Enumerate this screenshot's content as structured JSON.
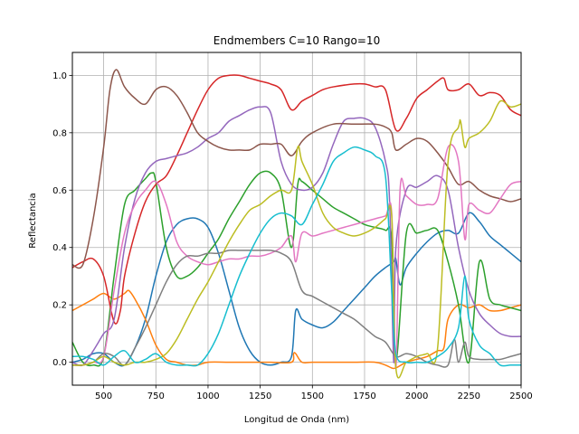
{
  "chart_data": {
    "type": "line",
    "title": "Endmembers C=10 Rango=10",
    "xlabel": "Longitud de Onda (nm)",
    "ylabel": "Reflectancia",
    "xlim": [
      350,
      2500
    ],
    "ylim": [
      -0.08,
      1.08
    ],
    "xticks": [
      500,
      750,
      1000,
      1250,
      1500,
      1750,
      2000,
      2250,
      2500
    ],
    "xtick_labels": [
      "500",
      "750",
      "1000",
      "1250",
      "1500",
      "1750",
      "2000",
      "2250",
      "2500"
    ],
    "yticks": [
      0.0,
      0.2,
      0.4,
      0.6,
      0.8,
      1.0
    ],
    "ytick_labels": [
      "0.0",
      "0.2",
      "0.4",
      "0.6",
      "0.8",
      "1.0"
    ],
    "grid": true,
    "series": [
      {
        "color": "#1f77b4",
        "x": [
          350,
          400,
          450,
          500,
          550,
          600,
          650,
          700,
          750,
          800,
          850,
          900,
          950,
          1000,
          1050,
          1100,
          1150,
          1200,
          1250,
          1300,
          1350,
          1400,
          1420,
          1450,
          1500,
          1550,
          1600,
          1650,
          1700,
          1750,
          1800,
          1850,
          1890,
          1900,
          1920,
          1950,
          2000,
          2050,
          2100,
          2150,
          2200,
          2250,
          2300,
          2350,
          2400,
          2450,
          2500
        ],
        "y": [
          0.0,
          0.01,
          0.03,
          0.03,
          0.0,
          -0.01,
          0.05,
          0.15,
          0.3,
          0.42,
          0.48,
          0.5,
          0.5,
          0.47,
          0.38,
          0.25,
          0.12,
          0.04,
          0.0,
          -0.01,
          0.0,
          0.02,
          0.18,
          0.15,
          0.13,
          0.12,
          0.14,
          0.18,
          0.22,
          0.26,
          0.3,
          0.33,
          0.35,
          0.36,
          0.27,
          0.33,
          0.38,
          0.42,
          0.45,
          0.46,
          0.45,
          0.52,
          0.49,
          0.44,
          0.41,
          0.38,
          0.35
        ]
      },
      {
        "color": "#ff7f0e",
        "x": [
          350,
          400,
          450,
          500,
          550,
          600,
          620,
          650,
          700,
          750,
          800,
          850,
          900,
          950,
          1000,
          1100,
          1200,
          1300,
          1400,
          1410,
          1420,
          1450,
          1500,
          1600,
          1700,
          1800,
          1850,
          1880,
          1900,
          1950,
          2000,
          2050,
          2100,
          2130,
          2150,
          2200,
          2250,
          2300,
          2350,
          2400,
          2450,
          2500
        ],
        "y": [
          0.18,
          0.2,
          0.22,
          0.24,
          0.22,
          0.24,
          0.25,
          0.22,
          0.15,
          0.06,
          0.01,
          0.0,
          -0.01,
          -0.01,
          0.0,
          0.0,
          0.0,
          0.0,
          0.0,
          0.03,
          0.03,
          0.0,
          0.0,
          0.0,
          0.0,
          0.0,
          -0.01,
          -0.02,
          -0.02,
          0.0,
          0.01,
          0.02,
          0.04,
          0.05,
          0.15,
          0.2,
          0.19,
          0.2,
          0.18,
          0.18,
          0.19,
          0.2
        ]
      },
      {
        "color": "#2ca02c",
        "x": [
          350,
          400,
          450,
          500,
          550,
          600,
          650,
          700,
          730,
          750,
          800,
          850,
          900,
          950,
          1000,
          1050,
          1100,
          1150,
          1200,
          1250,
          1300,
          1350,
          1400,
          1430,
          1450,
          1500,
          1550,
          1600,
          1650,
          1700,
          1750,
          1800,
          1850,
          1880,
          1900,
          1950,
          2000,
          2050,
          2100,
          2150,
          2200,
          2250,
          2300,
          2350,
          2400,
          2450,
          2500
        ],
        "y": [
          0.07,
          0.0,
          -0.01,
          0.02,
          0.3,
          0.55,
          0.6,
          0.64,
          0.66,
          0.63,
          0.4,
          0.3,
          0.3,
          0.33,
          0.38,
          0.43,
          0.5,
          0.56,
          0.62,
          0.66,
          0.66,
          0.6,
          0.4,
          0.62,
          0.63,
          0.6,
          0.57,
          0.54,
          0.52,
          0.5,
          0.48,
          0.47,
          0.46,
          0.43,
          0.0,
          0.45,
          0.45,
          0.46,
          0.46,
          0.35,
          0.2,
          0.0,
          0.35,
          0.22,
          0.2,
          0.19,
          0.18
        ]
      },
      {
        "color": "#d62728",
        "x": [
          350,
          400,
          450,
          500,
          550,
          580,
          600,
          650,
          700,
          750,
          800,
          850,
          900,
          950,
          1000,
          1050,
          1100,
          1150,
          1200,
          1250,
          1300,
          1350,
          1400,
          1450,
          1500,
          1550,
          1600,
          1700,
          1750,
          1800,
          1850,
          1900,
          1950,
          2000,
          2050,
          2100,
          2130,
          2150,
          2200,
          2250,
          2300,
          2350,
          2400,
          2450,
          2500
        ],
        "y": [
          0.33,
          0.35,
          0.36,
          0.3,
          0.14,
          0.18,
          0.3,
          0.45,
          0.56,
          0.62,
          0.65,
          0.72,
          0.8,
          0.88,
          0.95,
          0.99,
          1.0,
          1.0,
          0.99,
          0.98,
          0.97,
          0.95,
          0.88,
          0.91,
          0.93,
          0.95,
          0.96,
          0.97,
          0.97,
          0.96,
          0.95,
          0.81,
          0.85,
          0.92,
          0.95,
          0.98,
          0.99,
          0.95,
          0.95,
          0.97,
          0.93,
          0.94,
          0.93,
          0.88,
          0.86
        ]
      },
      {
        "color": "#9467bd",
        "x": [
          350,
          400,
          450,
          500,
          550,
          600,
          650,
          700,
          750,
          800,
          850,
          900,
          950,
          1000,
          1050,
          1100,
          1150,
          1200,
          1250,
          1300,
          1350,
          1400,
          1450,
          1500,
          1550,
          1600,
          1650,
          1700,
          1750,
          1800,
          1850,
          1870,
          1890,
          1900,
          1950,
          2000,
          2050,
          2100,
          2150,
          2200,
          2250,
          2300,
          2350,
          2400,
          2450,
          2500
        ],
        "y": [
          0.0,
          -0.01,
          0.04,
          0.1,
          0.15,
          0.4,
          0.57,
          0.66,
          0.7,
          0.71,
          0.72,
          0.73,
          0.75,
          0.78,
          0.8,
          0.84,
          0.86,
          0.88,
          0.89,
          0.87,
          0.7,
          0.62,
          0.6,
          0.61,
          0.66,
          0.76,
          0.84,
          0.85,
          0.85,
          0.82,
          0.7,
          0.56,
          0.0,
          0.4,
          0.6,
          0.61,
          0.63,
          0.65,
          0.6,
          0.4,
          0.25,
          0.17,
          0.13,
          0.1,
          0.09,
          0.09
        ]
      },
      {
        "color": "#8c564b",
        "x": [
          350,
          400,
          450,
          500,
          530,
          560,
          600,
          650,
          700,
          750,
          800,
          850,
          900,
          950,
          1000,
          1050,
          1100,
          1150,
          1200,
          1250,
          1300,
          1350,
          1400,
          1450,
          1500,
          1600,
          1700,
          1800,
          1850,
          1880,
          1900,
          1950,
          2000,
          2050,
          2100,
          2150,
          2200,
          2250,
          2300,
          2350,
          2400,
          2450,
          2500
        ],
        "y": [
          0.34,
          0.34,
          0.5,
          0.75,
          0.95,
          1.02,
          0.96,
          0.92,
          0.9,
          0.95,
          0.96,
          0.93,
          0.87,
          0.8,
          0.77,
          0.75,
          0.74,
          0.74,
          0.74,
          0.76,
          0.76,
          0.76,
          0.72,
          0.77,
          0.8,
          0.83,
          0.83,
          0.83,
          0.82,
          0.8,
          0.74,
          0.76,
          0.78,
          0.77,
          0.73,
          0.68,
          0.62,
          0.63,
          0.6,
          0.58,
          0.57,
          0.56,
          0.57
        ]
      },
      {
        "color": "#e377c2",
        "x": [
          350,
          400,
          450,
          500,
          550,
          600,
          650,
          700,
          750,
          800,
          850,
          900,
          950,
          1000,
          1050,
          1100,
          1150,
          1200,
          1250,
          1300,
          1350,
          1400,
          1420,
          1450,
          1500,
          1550,
          1600,
          1700,
          1800,
          1850,
          1880,
          1900,
          1920,
          1950,
          2000,
          2050,
          2100,
          2150,
          2200,
          2230,
          2250,
          2300,
          2350,
          2400,
          2450,
          2500
        ],
        "y": [
          -0.01,
          -0.01,
          0.0,
          0.02,
          0.25,
          0.45,
          0.55,
          0.6,
          0.63,
          0.55,
          0.42,
          0.37,
          0.35,
          0.34,
          0.35,
          0.36,
          0.36,
          0.37,
          0.37,
          0.38,
          0.4,
          0.44,
          0.35,
          0.45,
          0.44,
          0.45,
          0.46,
          0.48,
          0.5,
          0.51,
          0.52,
          -0.02,
          0.6,
          0.58,
          0.55,
          0.55,
          0.57,
          0.75,
          0.7,
          0.43,
          0.55,
          0.53,
          0.52,
          0.57,
          0.62,
          0.63
        ]
      },
      {
        "color": "#7f7f7f",
        "x": [
          350,
          400,
          450,
          500,
          550,
          600,
          650,
          700,
          750,
          800,
          850,
          900,
          950,
          1000,
          1050,
          1100,
          1150,
          1200,
          1250,
          1300,
          1350,
          1400,
          1450,
          1500,
          1550,
          1600,
          1650,
          1700,
          1750,
          1800,
          1850,
          1900,
          1950,
          2000,
          2050,
          2100,
          2150,
          2180,
          2200,
          2230,
          2250,
          2300,
          2350,
          2400,
          2450,
          2500
        ],
        "y": [
          -0.01,
          -0.01,
          0.0,
          0.03,
          0.02,
          -0.01,
          0.05,
          0.12,
          0.2,
          0.28,
          0.34,
          0.37,
          0.37,
          0.38,
          0.38,
          0.39,
          0.39,
          0.39,
          0.39,
          0.39,
          0.38,
          0.35,
          0.25,
          0.23,
          0.21,
          0.19,
          0.17,
          0.15,
          0.12,
          0.09,
          0.07,
          0.02,
          0.03,
          0.02,
          0.0,
          -0.01,
          -0.01,
          0.08,
          0.0,
          0.07,
          0.02,
          0.01,
          0.01,
          0.01,
          0.02,
          0.03
        ]
      },
      {
        "color": "#bcbd22",
        "x": [
          350,
          400,
          450,
          500,
          550,
          600,
          650,
          700,
          750,
          800,
          850,
          900,
          950,
          1000,
          1050,
          1100,
          1150,
          1200,
          1250,
          1300,
          1350,
          1400,
          1430,
          1450,
          1500,
          1550,
          1600,
          1650,
          1700,
          1750,
          1800,
          1850,
          1880,
          1900,
          1950,
          2000,
          2050,
          2100,
          2150,
          2200,
          2210,
          2230,
          2250,
          2300,
          2350,
          2400,
          2450,
          2500
        ],
        "y": [
          -0.01,
          -0.01,
          0.0,
          0.02,
          0.0,
          -0.01,
          0.0,
          0.0,
          0.01,
          0.03,
          0.08,
          0.15,
          0.22,
          0.28,
          0.35,
          0.42,
          0.48,
          0.53,
          0.55,
          0.58,
          0.6,
          0.6,
          0.75,
          0.7,
          0.62,
          0.52,
          0.47,
          0.45,
          0.44,
          0.45,
          0.47,
          0.5,
          0.51,
          -0.02,
          0.0,
          0.02,
          0.03,
          0.05,
          0.7,
          0.82,
          0.84,
          0.75,
          0.78,
          0.8,
          0.84,
          0.91,
          0.89,
          0.9
        ]
      },
      {
        "color": "#17becf",
        "x": [
          350,
          400,
          450,
          500,
          550,
          600,
          650,
          700,
          750,
          800,
          850,
          900,
          950,
          1000,
          1050,
          1100,
          1150,
          1200,
          1250,
          1300,
          1350,
          1400,
          1450,
          1500,
          1550,
          1600,
          1650,
          1700,
          1750,
          1800,
          1850,
          1880,
          1900,
          1950,
          2000,
          2050,
          2100,
          2150,
          2200,
          2230,
          2250,
          2300,
          2350,
          2400,
          2450,
          2500
        ],
        "y": [
          0.02,
          0.02,
          0.01,
          -0.01,
          0.02,
          0.04,
          0.0,
          0.01,
          0.03,
          0.0,
          -0.01,
          -0.01,
          -0.01,
          0.03,
          0.1,
          0.2,
          0.3,
          0.38,
          0.45,
          0.5,
          0.52,
          0.51,
          0.48,
          0.55,
          0.62,
          0.7,
          0.73,
          0.75,
          0.74,
          0.72,
          0.65,
          0.25,
          0.03,
          0.0,
          0.0,
          0.0,
          0.02,
          0.05,
          0.12,
          0.3,
          0.15,
          0.06,
          0.03,
          -0.01,
          -0.01,
          -0.01
        ]
      }
    ]
  }
}
